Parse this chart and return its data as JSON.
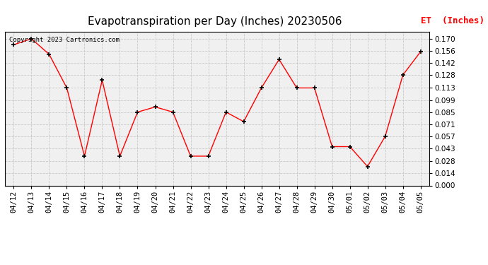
{
  "title": "Evapotranspiration per Day (Inches) 20230506",
  "legend_label": "ET  (Inches)",
  "copyright_text": "Copyright 2023 Cartronics.com",
  "dates": [
    "04/12",
    "04/13",
    "04/14",
    "04/15",
    "04/16",
    "04/17",
    "04/18",
    "04/19",
    "04/20",
    "04/21",
    "04/22",
    "04/23",
    "04/24",
    "04/25",
    "04/26",
    "04/27",
    "04/28",
    "04/29",
    "04/30",
    "05/01",
    "05/02",
    "05/03",
    "05/04",
    "05/05"
  ],
  "values": [
    0.163,
    0.17,
    0.152,
    0.113,
    0.034,
    0.122,
    0.034,
    0.085,
    0.091,
    0.085,
    0.034,
    0.034,
    0.085,
    0.074,
    0.113,
    0.146,
    0.113,
    0.113,
    0.045,
    0.045,
    0.022,
    0.057,
    0.128,
    0.155
  ],
  "ylim": [
    0.0,
    0.178
  ],
  "yticks": [
    0.0,
    0.014,
    0.028,
    0.043,
    0.057,
    0.071,
    0.085,
    0.099,
    0.113,
    0.128,
    0.142,
    0.156,
    0.17
  ],
  "line_color": "red",
  "marker": "+",
  "marker_color": "black",
  "grid_color": "#c8c8c8",
  "bg_color": "#f0f0f0",
  "title_fontsize": 11,
  "legend_color": "red",
  "copyright_color": "black",
  "copyright_fontsize": 6.5,
  "tick_fontsize": 7.5,
  "ytick_fontsize": 7.5
}
